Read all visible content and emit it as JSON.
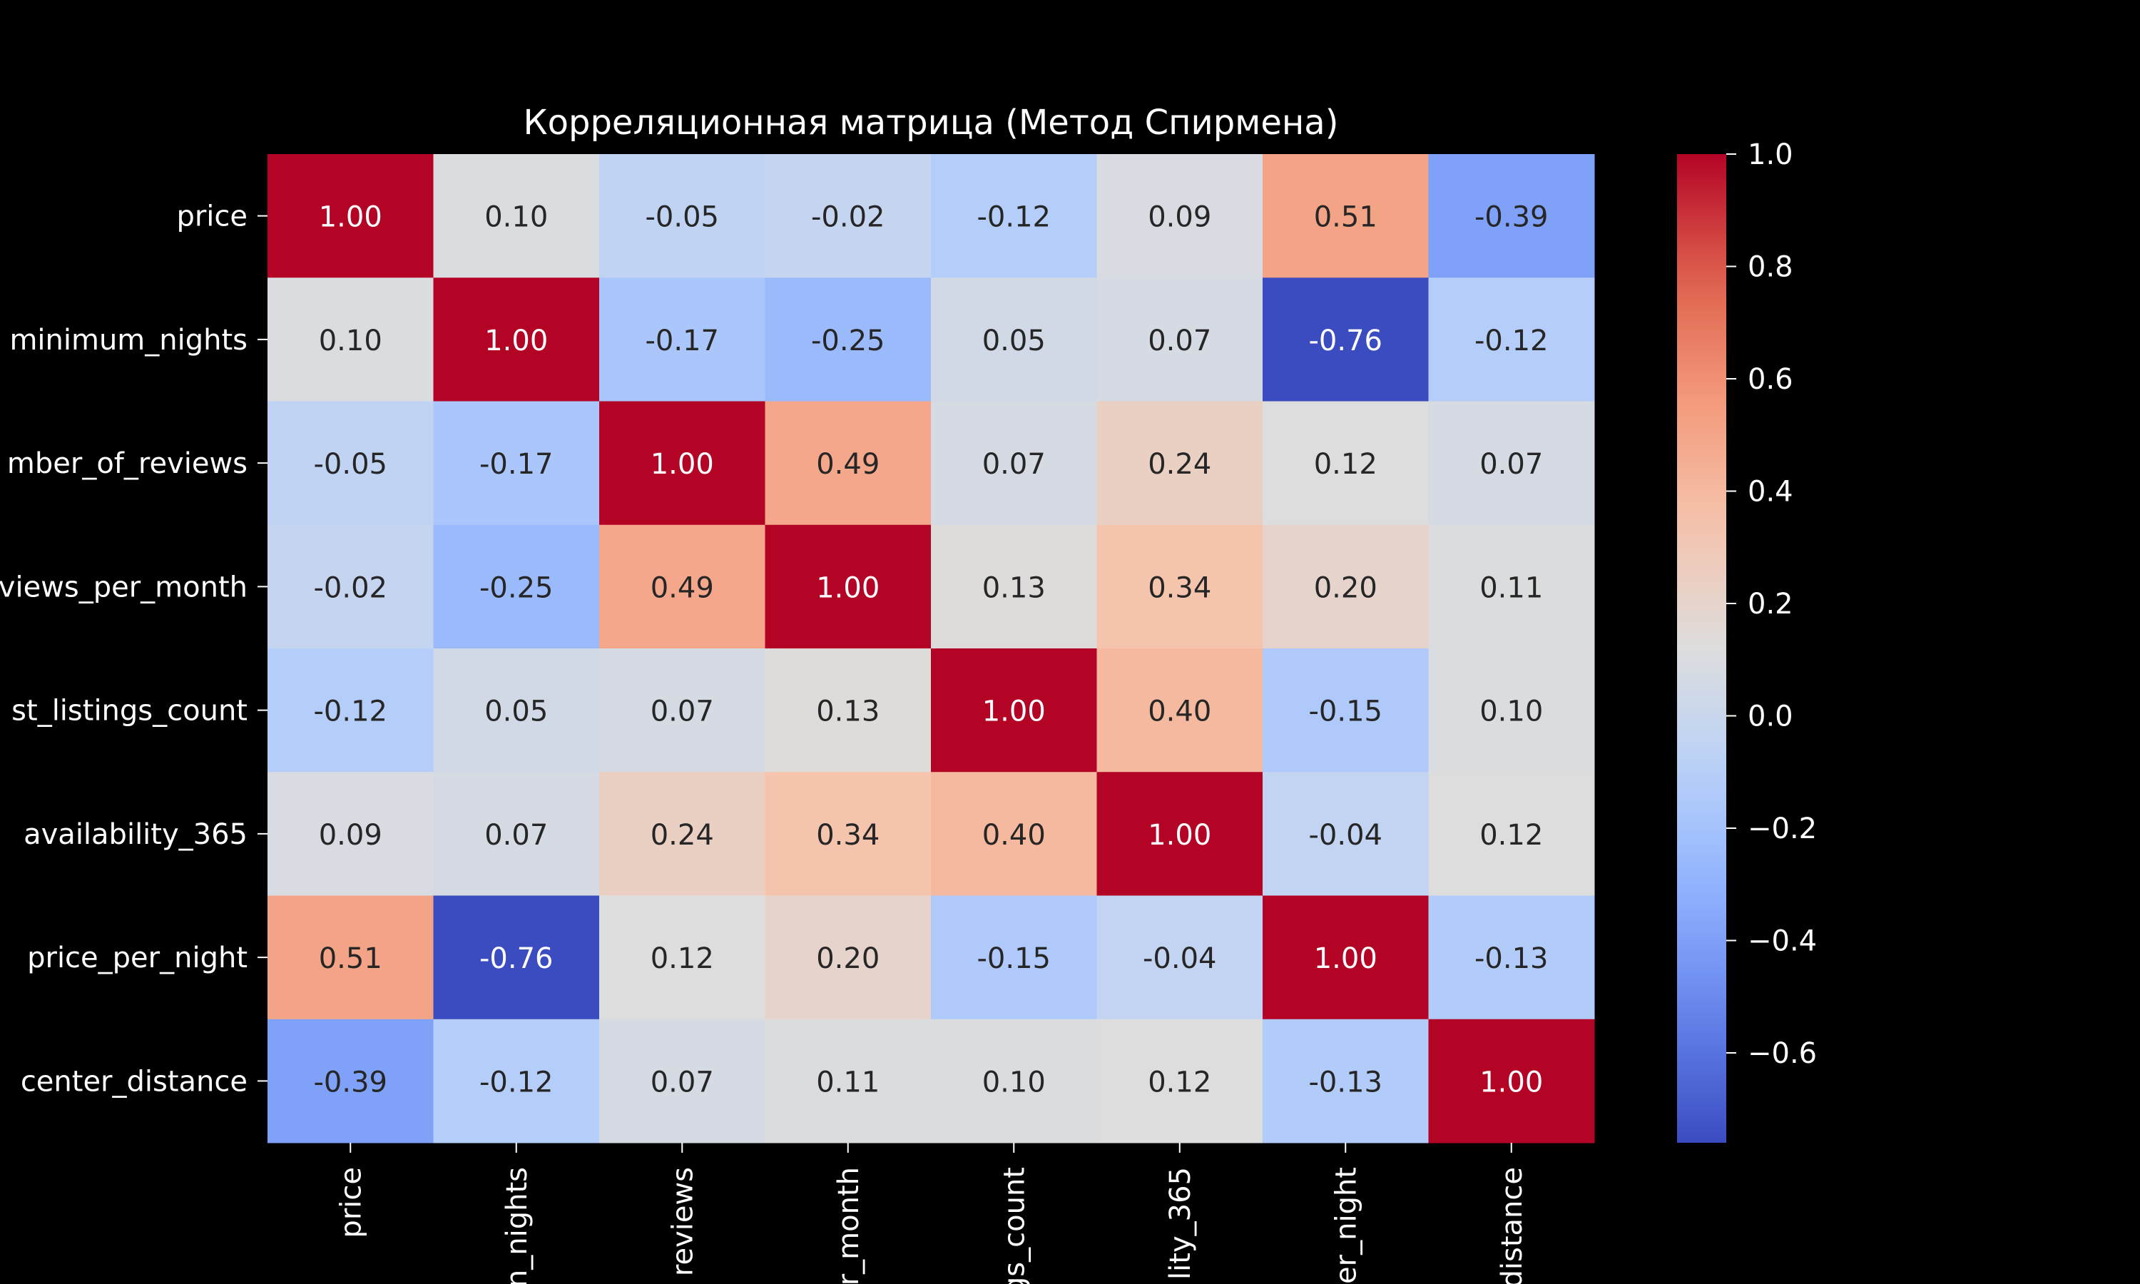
{
  "chart_data": {
    "type": "heatmap",
    "title": "Корреляционная матрица (Метод Спирмена)",
    "row_labels": [
      "price",
      "minimum_nights",
      "number_of_reviews",
      "reviews_per_month",
      "host_listings_count",
      "availability_365",
      "price_per_night",
      "center_distance"
    ],
    "row_labels_visible": [
      "price",
      "minimum_nights",
      "mber_of_reviews",
      "views_per_month",
      "st_listings_count",
      "availability_365",
      "price_per_night",
      "center_distance"
    ],
    "col_labels_visible": [
      "price",
      "n_nights",
      "reviews",
      "r_month",
      "gs_count",
      "lity_365",
      "er_night",
      "distance"
    ],
    "values": [
      [
        1.0,
        0.1,
        -0.05,
        -0.02,
        -0.12,
        0.09,
        0.51,
        -0.39
      ],
      [
        0.1,
        1.0,
        -0.17,
        -0.25,
        0.05,
        0.07,
        -0.76,
        -0.12
      ],
      [
        -0.05,
        -0.17,
        1.0,
        0.49,
        0.07,
        0.24,
        0.12,
        0.07
      ],
      [
        -0.02,
        -0.25,
        0.49,
        1.0,
        0.13,
        0.34,
        0.2,
        0.11
      ],
      [
        -0.12,
        0.05,
        0.07,
        0.13,
        1.0,
        0.4,
        -0.15,
        0.1
      ],
      [
        0.09,
        0.07,
        0.24,
        0.34,
        0.4,
        1.0,
        -0.04,
        0.12
      ],
      [
        0.51,
        -0.76,
        0.12,
        0.2,
        -0.15,
        -0.04,
        1.0,
        -0.13
      ],
      [
        -0.39,
        -0.12,
        0.07,
        0.11,
        0.1,
        0.12,
        -0.13,
        1.0
      ]
    ],
    "annotation_format": "2 decimals",
    "colormap": "coolwarm",
    "vmin": -0.76,
    "vmax": 1.0,
    "colorbar_ticks": [
      1.0,
      0.8,
      0.6,
      0.4,
      0.2,
      0.0,
      -0.2,
      -0.4,
      -0.6
    ],
    "colorbar_tick_labels": [
      "1.0",
      "0.8",
      "0.6",
      "0.4",
      "0.2",
      "0.0",
      "−0.2",
      "−0.4",
      "−0.6"
    ],
    "colors": {
      "background": "#000000",
      "text": "#ffffff",
      "cell_text_dark": "#262626",
      "cell_text_light": "#ffffff"
    }
  }
}
